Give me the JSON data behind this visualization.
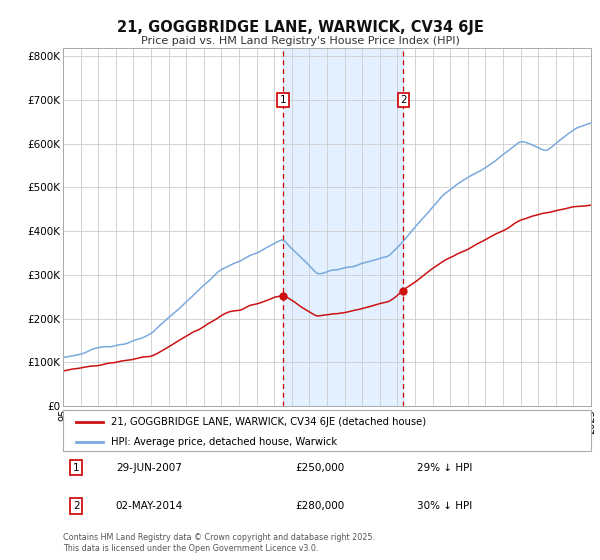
{
  "title": "21, GOGGBRIDGE LANE, WARWICK, CV34 6JE",
  "subtitle": "Price paid vs. HM Land Registry's House Price Index (HPI)",
  "ylim": [
    0,
    820000
  ],
  "yticks": [
    0,
    100000,
    200000,
    300000,
    400000,
    500000,
    600000,
    700000,
    800000
  ],
  "ytick_labels": [
    "£0",
    "£100K",
    "£200K",
    "£300K",
    "£400K",
    "£500K",
    "£600K",
    "£700K",
    "£800K"
  ],
  "hpi_color": "#7aaadd",
  "price_color": "#cc1111",
  "purchase1_year": 2007.5,
  "purchase2_year": 2014.33,
  "purchase1_date": "29-JUN-2007",
  "purchase1_price": 250000,
  "purchase1_pct": "29%",
  "purchase2_date": "02-MAY-2014",
  "purchase2_price": 280000,
  "purchase2_pct": "30%",
  "legend_label1": "21, GOGGBRIDGE LANE, WARWICK, CV34 6JE (detached house)",
  "legend_label2": "HPI: Average price, detached house, Warwick",
  "footer": "Contains HM Land Registry data © Crown copyright and database right 2025.\nThis data is licensed under the Open Government Licence v3.0.",
  "background_color": "#ffffff",
  "grid_color": "#cccccc",
  "shade_color": "#ddeeff"
}
